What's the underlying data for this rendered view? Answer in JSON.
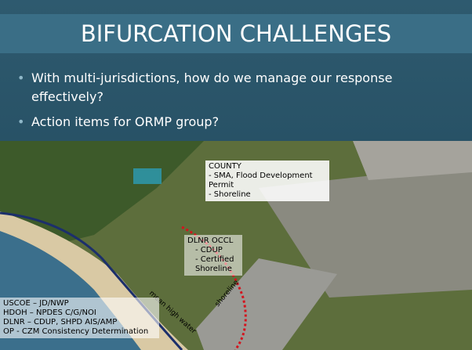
{
  "title": "BIFURCATION CHALLENGES",
  "bullets": [
    "With multi-jurisdictions, how do we manage our response effectively?",
    "Action items for ORMP group?"
  ],
  "map_labels": {
    "county": {
      "heading": "COUNTY",
      "items": [
        "- SMA, Flood Development Permit",
        "- Shoreline"
      ]
    },
    "dlnr_occl": {
      "heading": "DLNR OCCL",
      "items": [
        "- CDUP",
        "- Certified Shoreline"
      ]
    },
    "agencies": [
      "USCOE – JD/NWP",
      "HDOH – NPDES C/G/NOI",
      "DLNR – CDUP, SHPD AIS/AMP",
      "OP - CZM Consistency Determination"
    ],
    "mean_high_water": "mean high water",
    "shoreline": "shoreline"
  }
}
